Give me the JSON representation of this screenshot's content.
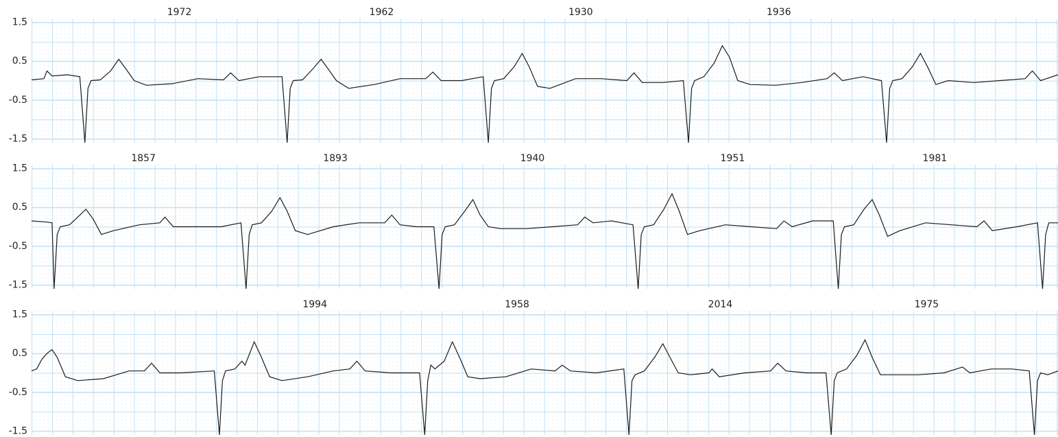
{
  "chart_data": [
    {
      "type": "line",
      "color": "#1a1a1a",
      "xlim": [
        0,
        10
      ],
      "ylim": [
        -1.6,
        1.6
      ],
      "yticks": [
        1.5,
        0.5,
        -0.5,
        -1.5
      ],
      "annotations": [
        {
          "x": 1.44,
          "label": "1972"
        },
        {
          "x": 3.41,
          "label": "1962"
        },
        {
          "x": 5.35,
          "label": "1930"
        },
        {
          "x": 7.28,
          "label": "1936"
        }
      ],
      "x": [
        0,
        0.12,
        0.15,
        0.2,
        0.35,
        0.47,
        0.52,
        0.55,
        0.58,
        0.67,
        0.77,
        0.85,
        0.92,
        1.0,
        1.12,
        1.37,
        1.62,
        1.87,
        1.94,
        2.02,
        2.22,
        2.44,
        2.49,
        2.52,
        2.55,
        2.64,
        2.74,
        2.82,
        2.89,
        2.97,
        3.09,
        3.34,
        3.59,
        3.84,
        3.91,
        3.99,
        4.19,
        4.4,
        4.45,
        4.48,
        4.51,
        4.6,
        4.7,
        4.78,
        4.85,
        4.93,
        5.05,
        5.3,
        5.55,
        5.8,
        5.87,
        5.95,
        6.15,
        6.35,
        6.4,
        6.43,
        6.46,
        6.55,
        6.65,
        6.73,
        6.8,
        6.88,
        7.0,
        7.25,
        7.5,
        7.75,
        7.82,
        7.9,
        8.1,
        8.28,
        8.33,
        8.36,
        8.39,
        8.48,
        8.58,
        8.66,
        8.73,
        8.81,
        8.93,
        9.18,
        9.43,
        9.68,
        9.75,
        9.83,
        10.0
      ],
      "values": [
        0.02,
        0.05,
        0.25,
        0.12,
        0.15,
        0.1,
        -1.6,
        -0.2,
        0.0,
        0.02,
        0.25,
        0.55,
        0.3,
        0.0,
        -0.12,
        -0.08,
        0.05,
        0.02,
        0.2,
        0.0,
        0.1,
        0.1,
        -1.6,
        -0.2,
        0.0,
        0.02,
        0.3,
        0.55,
        0.3,
        0.0,
        -0.2,
        -0.1,
        0.05,
        0.05,
        0.22,
        0.0,
        0.0,
        0.1,
        -1.6,
        -0.2,
        0.0,
        0.05,
        0.35,
        0.7,
        0.35,
        -0.15,
        -0.2,
        0.05,
        0.05,
        0.0,
        0.2,
        -0.05,
        -0.05,
        0.0,
        -1.6,
        -0.2,
        0.0,
        0.1,
        0.45,
        0.9,
        0.6,
        0.0,
        -0.1,
        -0.12,
        -0.05,
        0.05,
        0.2,
        0.0,
        0.1,
        0.0,
        -1.6,
        -0.2,
        0.0,
        0.05,
        0.35,
        0.7,
        0.35,
        -0.1,
        0.0,
        -0.05,
        0.0,
        0.05,
        0.25,
        0.0,
        0.15
      ]
    },
    {
      "type": "line",
      "color": "#1a1a1a",
      "xlim": [
        0,
        10
      ],
      "ylim": [
        -1.6,
        1.6
      ],
      "yticks": [
        1.5,
        0.5,
        -0.5,
        -1.5
      ],
      "annotations": [
        {
          "x": 1.09,
          "label": "1857"
        },
        {
          "x": 2.96,
          "label": "1893"
        },
        {
          "x": 4.88,
          "label": "1940"
        },
        {
          "x": 6.83,
          "label": "1951"
        },
        {
          "x": 8.8,
          "label": "1981"
        }
      ],
      "x": [
        0,
        0.15,
        0.2,
        0.22,
        0.25,
        0.28,
        0.37,
        0.45,
        0.53,
        0.6,
        0.68,
        0.8,
        1.05,
        1.25,
        1.3,
        1.38,
        1.6,
        1.85,
        2.04,
        2.09,
        2.12,
        2.15,
        2.24,
        2.34,
        2.42,
        2.49,
        2.57,
        2.69,
        2.94,
        3.19,
        3.44,
        3.51,
        3.59,
        3.75,
        3.92,
        3.97,
        4.0,
        4.03,
        4.12,
        4.22,
        4.3,
        4.37,
        4.45,
        4.57,
        4.82,
        5.07,
        5.32,
        5.39,
        5.47,
        5.65,
        5.86,
        5.91,
        5.94,
        5.97,
        6.06,
        6.16,
        6.24,
        6.31,
        6.39,
        6.51,
        6.76,
        7.01,
        7.26,
        7.33,
        7.41,
        7.61,
        7.81,
        7.86,
        7.89,
        7.92,
        8.01,
        8.11,
        8.19,
        8.26,
        8.34,
        8.46,
        8.71,
        8.96,
        9.21,
        9.28,
        9.36,
        9.6,
        9.8,
        9.85,
        9.88,
        9.91,
        10.0
      ],
      "values": [
        0.15,
        0.12,
        0.1,
        -1.6,
        -0.2,
        0.0,
        0.05,
        0.25,
        0.45,
        0.2,
        -0.2,
        -0.1,
        0.05,
        0.1,
        0.25,
        0.0,
        0.0,
        0.0,
        0.1,
        -1.6,
        -0.2,
        0.05,
        0.1,
        0.4,
        0.75,
        0.4,
        -0.1,
        -0.2,
        0.0,
        0.1,
        0.1,
        0.3,
        0.05,
        0.0,
        0.0,
        -1.6,
        -0.2,
        0.0,
        0.05,
        0.4,
        0.7,
        0.3,
        0.0,
        -0.05,
        -0.05,
        0.0,
        0.05,
        0.25,
        0.1,
        0.15,
        0.05,
        -1.6,
        -0.2,
        0.0,
        0.05,
        0.45,
        0.85,
        0.4,
        -0.2,
        -0.1,
        0.05,
        0.0,
        -0.05,
        0.15,
        0.0,
        0.15,
        0.15,
        -1.6,
        -0.2,
        0.0,
        0.05,
        0.45,
        0.7,
        0.3,
        -0.25,
        -0.1,
        0.1,
        0.05,
        0.0,
        0.15,
        -0.1,
        0.0,
        0.1,
        -1.6,
        -0.2,
        0.1,
        0.1
      ]
    },
    {
      "type": "line",
      "color": "#1a1a1a",
      "xlim": [
        0,
        10
      ],
      "ylim": [
        -1.6,
        1.6
      ],
      "yticks": [
        1.5,
        0.5,
        -0.5,
        -1.5
      ],
      "annotations": [
        {
          "x": 2.76,
          "label": "1994"
        },
        {
          "x": 4.73,
          "label": "1958"
        },
        {
          "x": 6.71,
          "label": "2014"
        },
        {
          "x": 8.72,
          "label": "1975"
        }
      ],
      "x": [
        0,
        0.05,
        0.1,
        0.15,
        0.2,
        0.25,
        0.33,
        0.45,
        0.7,
        0.95,
        1.1,
        1.17,
        1.25,
        1.45,
        1.78,
        1.83,
        1.86,
        1.89,
        1.98,
        2.05,
        2.08,
        2.17,
        2.24,
        2.32,
        2.44,
        2.69,
        2.94,
        3.1,
        3.17,
        3.25,
        3.5,
        3.78,
        3.83,
        3.86,
        3.89,
        3.93,
        4.02,
        4.1,
        4.17,
        4.25,
        4.37,
        4.62,
        4.87,
        5.1,
        5.17,
        5.25,
        5.5,
        5.77,
        5.82,
        5.85,
        5.88,
        5.97,
        6.07,
        6.15,
        6.22,
        6.3,
        6.42,
        6.6,
        6.63,
        6.7,
        6.95,
        7.2,
        7.27,
        7.35,
        7.55,
        7.74,
        7.79,
        7.82,
        7.85,
        7.94,
        8.04,
        8.12,
        8.19,
        8.27,
        8.39,
        8.64,
        8.89,
        9.07,
        9.14,
        9.35,
        9.55,
        9.72,
        9.77,
        9.8,
        9.83,
        9.9,
        10.0
      ],
      "values": [
        0.05,
        0.1,
        0.35,
        0.5,
        0.6,
        0.4,
        -0.1,
        -0.2,
        -0.15,
        0.05,
        0.05,
        0.25,
        0.0,
        0.0,
        0.05,
        -1.6,
        -0.2,
        0.05,
        0.1,
        0.3,
        0.2,
        0.8,
        0.4,
        -0.1,
        -0.2,
        -0.1,
        0.05,
        0.1,
        0.3,
        0.05,
        0.0,
        0.0,
        -1.6,
        -0.2,
        0.2,
        0.1,
        0.3,
        0.8,
        0.4,
        -0.1,
        -0.15,
        -0.1,
        0.1,
        0.05,
        0.2,
        0.05,
        0.0,
        0.1,
        -1.6,
        -0.2,
        -0.05,
        0.05,
        0.4,
        0.75,
        0.4,
        0.0,
        -0.05,
        0.0,
        0.1,
        -0.1,
        0.0,
        0.05,
        0.25,
        0.05,
        0.0,
        0.0,
        -1.6,
        -0.2,
        0.0,
        0.1,
        0.45,
        0.85,
        0.4,
        -0.05,
        -0.05,
        -0.05,
        0.0,
        0.15,
        0.0,
        0.1,
        0.1,
        0.05,
        -1.6,
        -0.2,
        0.0,
        -0.05,
        0.05
      ]
    }
  ]
}
